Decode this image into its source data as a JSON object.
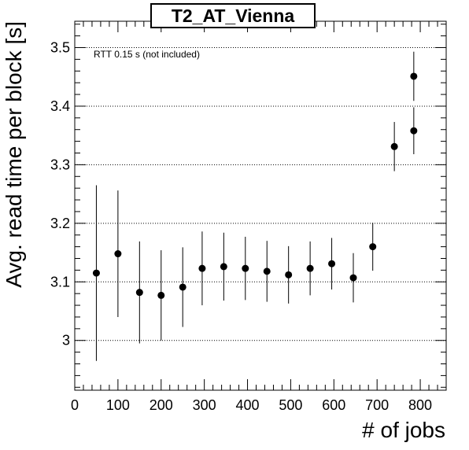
{
  "chart_data": {
    "type": "scatter",
    "title": "T2_AT_Vienna",
    "xlabel": "# of jobs",
    "ylabel": "Avg. read time per block [s]",
    "annotation": "RTT 0.15 s (not included)",
    "xlim": [
      0,
      860
    ],
    "ylim": [
      2.915,
      3.545
    ],
    "x_ticks": [
      0,
      100,
      200,
      300,
      400,
      500,
      600,
      700,
      800
    ],
    "y_ticks": [
      3,
      3.1,
      3.2,
      3.3,
      3.4,
      3.5
    ],
    "x_tick_labels": [
      "0",
      "100",
      "200",
      "300",
      "400",
      "500",
      "600",
      "700",
      "800"
    ],
    "y_tick_labels": [
      "3",
      "3.1",
      "3.2",
      "3.3",
      "3.4",
      "3.5"
    ],
    "grid": "horizontal",
    "points": [
      {
        "x": 50,
        "y": 3.115,
        "err": 0.15
      },
      {
        "x": 100,
        "y": 3.148,
        "err": 0.108
      },
      {
        "x": 150,
        "y": 3.082,
        "err": 0.087
      },
      {
        "x": 200,
        "y": 3.077,
        "err": 0.077
      },
      {
        "x": 250,
        "y": 3.091,
        "err": 0.068
      },
      {
        "x": 295,
        "y": 3.123,
        "err": 0.063
      },
      {
        "x": 345,
        "y": 3.126,
        "err": 0.058
      },
      {
        "x": 395,
        "y": 3.123,
        "err": 0.054
      },
      {
        "x": 445,
        "y": 3.118,
        "err": 0.052
      },
      {
        "x": 495,
        "y": 3.112,
        "err": 0.049
      },
      {
        "x": 545,
        "y": 3.123,
        "err": 0.046
      },
      {
        "x": 595,
        "y": 3.131,
        "err": 0.044
      },
      {
        "x": 645,
        "y": 3.107,
        "err": 0.042
      },
      {
        "x": 690,
        "y": 3.16,
        "err": 0.041
      },
      {
        "x": 740,
        "y": 3.331,
        "err": 0.042
      },
      {
        "x": 785,
        "y": 3.451,
        "err": 0.042
      },
      {
        "x": 785,
        "y": 3.358,
        "err": 0.04
      }
    ]
  }
}
